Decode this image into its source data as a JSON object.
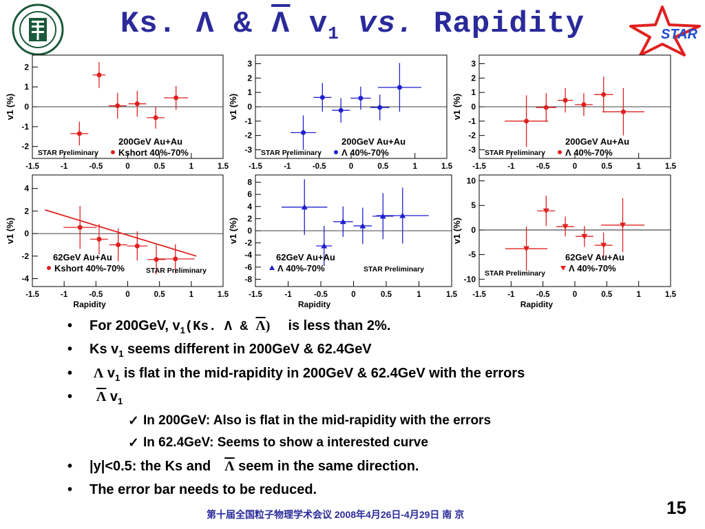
{
  "title": {
    "prefix": "Ks. Λ & ",
    "lambda_bar": "Λ",
    "v": " v",
    "sub1": "1",
    "vs": " vs.",
    "rapidity": " Rapidity"
  },
  "logos": {
    "left_icon": "university-seal",
    "right_text": "STAR",
    "right_color": "#e02020"
  },
  "colors": {
    "red": "#e02020",
    "blue": "#1f1fd0",
    "title": "#2a2a9a"
  },
  "chart_data": [
    {
      "type": "scatter",
      "id": "ks200",
      "color": "#e02020",
      "marker": "circle",
      "xlim": [
        -1.5,
        1.5
      ],
      "ylim": [
        -2.6,
        2.6
      ],
      "yticks": [
        -2,
        -1,
        0,
        1,
        2
      ],
      "xticks": [
        -1.5,
        -1,
        -0.5,
        0,
        0.5,
        1,
        1.5
      ],
      "ylabel": "v1 (%)",
      "xlabel": "",
      "energy_label": "200GeV Au+Au",
      "species_label": "Kshort  40%-70%",
      "prelim_label": "STAR Preliminary",
      "x": [
        -0.76,
        -0.45,
        -0.16,
        0.15,
        0.44,
        0.76
      ],
      "y": [
        -1.35,
        1.6,
        0.05,
        0.15,
        -0.55,
        0.45
      ],
      "xerr": [
        0.14,
        0.1,
        0.14,
        0.14,
        0.14,
        0.19
      ],
      "yerr": [
        0.6,
        0.65,
        0.65,
        0.65,
        0.55,
        0.6
      ]
    },
    {
      "type": "scatter",
      "id": "la200",
      "color": "#1f1fd0",
      "marker": "circle",
      "xlim": [
        -1.5,
        1.5
      ],
      "ylim": [
        -3.6,
        3.6
      ],
      "yticks": [
        -3,
        -2,
        -1,
        0,
        1,
        2,
        3
      ],
      "xticks": [
        -1.5,
        -1,
        -0.5,
        0,
        0.5,
        1,
        1.5
      ],
      "ylabel": "v1 (%)",
      "xlabel": "",
      "energy_label": "200GeV Au+Au",
      "species_label": "Λ  40%-70%",
      "prelim_label": "STAR Preliminary",
      "x": [
        -0.75,
        -0.45,
        -0.16,
        0.15,
        0.45,
        0.76
      ],
      "y": [
        -1.8,
        0.65,
        -0.25,
        0.6,
        -0.05,
        1.35
      ],
      "xerr": [
        0.2,
        0.14,
        0.14,
        0.16,
        0.15,
        0.34
      ],
      "yerr": [
        1.2,
        1.0,
        0.85,
        0.8,
        0.9,
        1.7
      ]
    },
    {
      "type": "scatter",
      "id": "al200",
      "color": "#e02020",
      "marker": "circle",
      "xlim": [
        -1.5,
        1.5
      ],
      "ylim": [
        -3.6,
        3.6
      ],
      "yticks": [
        -3,
        -2,
        -1,
        0,
        1,
        2,
        3
      ],
      "xticks": [
        -1.5,
        -1,
        -0.5,
        0,
        0.5,
        1,
        1.5
      ],
      "ylabel": "v1 (%)",
      "xlabel": "",
      "energy_label": "200GeV Au+Au",
      "species_label": "Λ  40%-70%",
      "prelim_label": "STAR Preliminary",
      "x": [
        -0.76,
        -0.45,
        -0.15,
        0.14,
        0.45,
        0.76
      ],
      "y": [
        -1.0,
        -0.05,
        0.45,
        0.15,
        0.85,
        -0.35
      ],
      "xerr": [
        0.34,
        0.16,
        0.12,
        0.14,
        0.15,
        0.33
      ],
      "yerr": [
        1.8,
        1.0,
        0.85,
        0.8,
        1.25,
        1.65
      ]
    },
    {
      "type": "scatter",
      "id": "ks62",
      "color": "#e02020",
      "marker": "circle",
      "xlim": [
        -1.5,
        1.5
      ],
      "ylim": [
        -4.7,
        5.2
      ],
      "yticks": [
        -4,
        -2,
        0,
        2,
        4
      ],
      "xticks": [
        -1.5,
        -1,
        -0.5,
        0,
        0.5,
        1,
        1.5
      ],
      "ylabel": "v1 (%)",
      "xlabel": "Rapidity",
      "energy_label": "62GeV Au+Au",
      "species_label": "Kshort  40%-70%",
      "prelim_label": "STAR Preliminary",
      "x": [
        -0.75,
        -0.45,
        -0.15,
        0.15,
        0.45,
        0.75
      ],
      "y": [
        0.55,
        -0.5,
        -1.0,
        -1.1,
        -2.3,
        -2.25
      ],
      "xerr": [
        0.26,
        0.14,
        0.14,
        0.16,
        0.14,
        0.3
      ],
      "yerr": [
        1.9,
        1.35,
        1.45,
        1.3,
        1.3,
        1.3
      ],
      "fit_line": {
        "x": [
          -1.3,
          1.08
        ],
        "y": [
          2.1,
          -2.0
        ]
      }
    },
    {
      "type": "scatter",
      "id": "la62",
      "color": "#1f1fd0",
      "marker": "triangle",
      "xlim": [
        -1.5,
        1.5
      ],
      "ylim": [
        -9.2,
        9.2
      ],
      "yticks": [
        -8,
        -6,
        -4,
        -2,
        0,
        2,
        4,
        6,
        8
      ],
      "xticks": [
        -1.5,
        -1,
        -0.5,
        0,
        0.5,
        1,
        1.5
      ],
      "ylabel": "v1 (%)",
      "xlabel": "Rapidity",
      "energy_label": "62GeV Au+Au",
      "species_label": "Λ  40%-70%",
      "prelim_label": "STAR Preliminary",
      "x": [
        -0.75,
        -0.45,
        -0.16,
        0.14,
        0.45,
        0.75
      ],
      "y": [
        3.9,
        -2.5,
        1.5,
        0.8,
        2.4,
        2.5
      ],
      "xerr": [
        0.35,
        0.12,
        0.15,
        0.14,
        0.16,
        0.4
      ],
      "yerr": [
        4.6,
        3.3,
        2.5,
        3.0,
        3.8,
        4.6
      ]
    },
    {
      "type": "scatter",
      "id": "al62",
      "color": "#e02020",
      "marker": "triangle-down",
      "xlim": [
        -1.5,
        1.5
      ],
      "ylim": [
        -11.5,
        11.2
      ],
      "yticks": [
        -10,
        -5,
        0,
        5,
        10
      ],
      "xticks": [
        -1.5,
        -1,
        -0.5,
        0,
        0.5,
        1,
        1.5
      ],
      "ylabel": "v1 (%)",
      "xlabel": "Rapidity",
      "energy_label": "62GeV Au+Au",
      "species_label": "Λ  40%-70%",
      "prelim_label": "STAR Preliminary",
      "x": [
        -0.76,
        -0.45,
        -0.15,
        0.15,
        0.45,
        0.75
      ],
      "y": [
        -3.8,
        3.9,
        0.7,
        -1.3,
        -3.1,
        1.0
      ],
      "xerr": [
        0.33,
        0.14,
        0.14,
        0.14,
        0.14,
        0.34
      ],
      "yerr": [
        4.5,
        3.1,
        2.0,
        2.1,
        2.6,
        5.5
      ]
    }
  ],
  "bullets": {
    "b1_a": "For 200GeV, v",
    "b1_sub": "1",
    "b1_b": "(Ks. Λ & ",
    "b1_bar": "Λ",
    "b1_c": ")",
    "b1_d": "is less than 2%.",
    "b2_a": "Ks v",
    "b2_sub": "1",
    "b2_b": " seems different in 200GeV & 62.4GeV",
    "b3_lambda": "Λ",
    "b3_a": " v",
    "b3_sub": "1",
    "b3_b": " is flat in the mid-rapidity in 200GeV & 62.4GeV with the errors",
    "b4_bar": "Λ",
    "b4_a": " v",
    "b4_sub": "1",
    "s1": "In 200GeV:  Also is flat in the mid-rapidity with the errors",
    "s2": "In 62.4GeV: Seems to show a interested curve",
    "b5_a": "|y|<0.5:  the Ks and",
    "b5_bar": "Λ",
    "b5_b": " seem in the same direction.",
    "b6": "The error bar needs to be reduced."
  },
  "footer": "第十届全国粒子物理学术会议 2008年4月26日-4月29日 南 京",
  "page_number": "15"
}
